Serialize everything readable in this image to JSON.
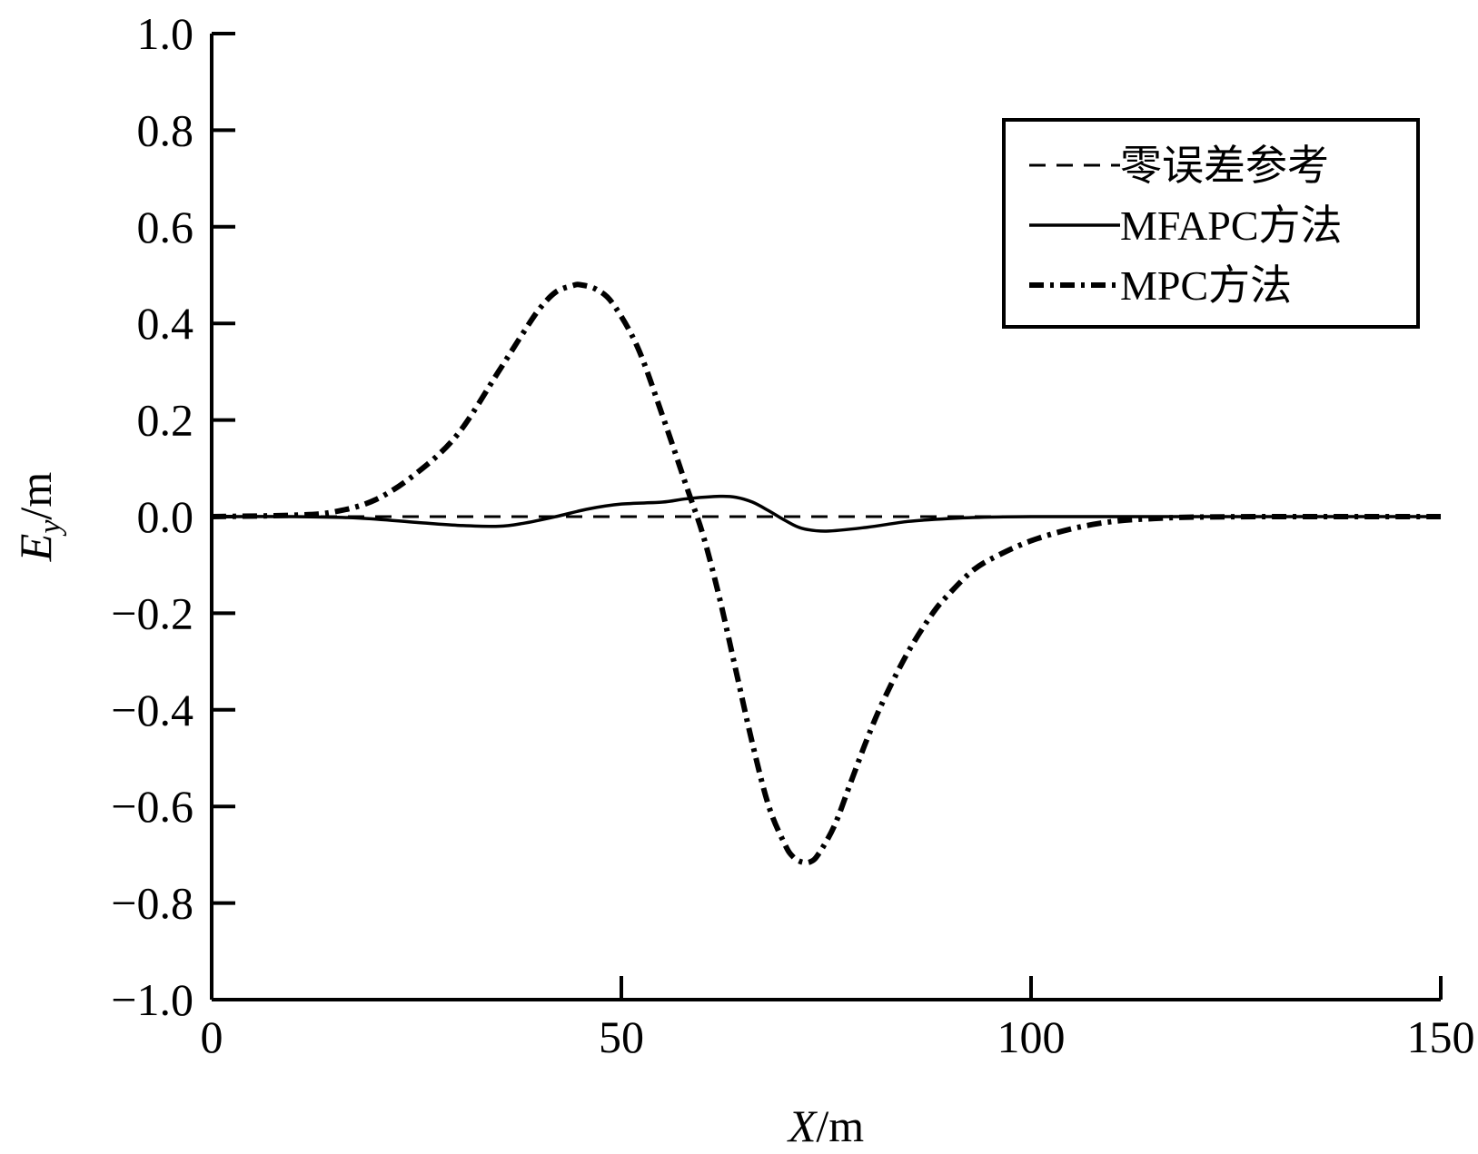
{
  "chart_data": {
    "type": "line",
    "xlabel": {
      "var": "X",
      "unit": "/m"
    },
    "ylabel": {
      "var": "E",
      "sub": "y",
      "unit": "/m"
    },
    "xlim": [
      0,
      150
    ],
    "ylim": [
      -1.0,
      1.0
    ],
    "x_ticks": [
      0,
      50,
      100,
      150
    ],
    "x_tick_labels": [
      "0",
      "50",
      "100",
      "150"
    ],
    "y_ticks": [
      1.0,
      0.8,
      0.6,
      0.4,
      0.2,
      0.0,
      -0.2,
      -0.4,
      -0.6,
      -0.8,
      -1.0
    ],
    "y_tick_labels": [
      "1.0",
      "0.8",
      "0.6",
      "0.4",
      "0.2",
      "0.0",
      "−0.2",
      "−0.4",
      "−0.6",
      "−0.8",
      "−1.0"
    ],
    "grid": false,
    "legend_position": "top-right",
    "series": [
      {
        "name": "零误差参考",
        "style": "dashed",
        "color": "#000000",
        "x": [
          0,
          150
        ],
        "y": [
          0,
          0
        ]
      },
      {
        "name": "MFAPC方法",
        "style": "solid",
        "color": "#000000",
        "x": [
          0,
          10,
          18,
          25,
          30,
          35,
          38,
          42,
          46,
          50,
          55,
          58,
          62,
          64,
          66,
          68,
          70,
          72,
          75,
          80,
          85,
          90,
          95,
          100,
          110,
          120,
          150
        ],
        "y": [
          0.0,
          0.0,
          -0.003,
          -0.012,
          -0.018,
          -0.02,
          -0.014,
          0.0,
          0.016,
          0.026,
          0.03,
          0.037,
          0.042,
          0.04,
          0.03,
          0.012,
          -0.008,
          -0.024,
          -0.03,
          -0.022,
          -0.01,
          -0.004,
          -0.001,
          0.0,
          0.0,
          0.0,
          0.0
        ]
      },
      {
        "name": "MPC方法",
        "style": "dashdot",
        "color": "#000000",
        "x": [
          0,
          10,
          15,
          20,
          25,
          30,
          35,
          38,
          40,
          42,
          44,
          45,
          47,
          49,
          52,
          55,
          58,
          60,
          62,
          64,
          66,
          68,
          70,
          71,
          72,
          73,
          74,
          76,
          78,
          80,
          82,
          85,
          88,
          90,
          93,
          96,
          100,
          105,
          110,
          115,
          120,
          130,
          150
        ],
        "y": [
          0.0,
          0.003,
          0.01,
          0.035,
          0.09,
          0.17,
          0.3,
          0.38,
          0.43,
          0.465,
          0.478,
          0.48,
          0.47,
          0.44,
          0.35,
          0.21,
          0.06,
          -0.04,
          -0.17,
          -0.32,
          -0.47,
          -0.6,
          -0.68,
          -0.705,
          -0.715,
          -0.715,
          -0.7,
          -0.64,
          -0.55,
          -0.46,
          -0.38,
          -0.28,
          -0.2,
          -0.16,
          -0.11,
          -0.08,
          -0.05,
          -0.025,
          -0.01,
          -0.004,
          -0.001,
          0.0,
          0.0
        ]
      }
    ]
  }
}
